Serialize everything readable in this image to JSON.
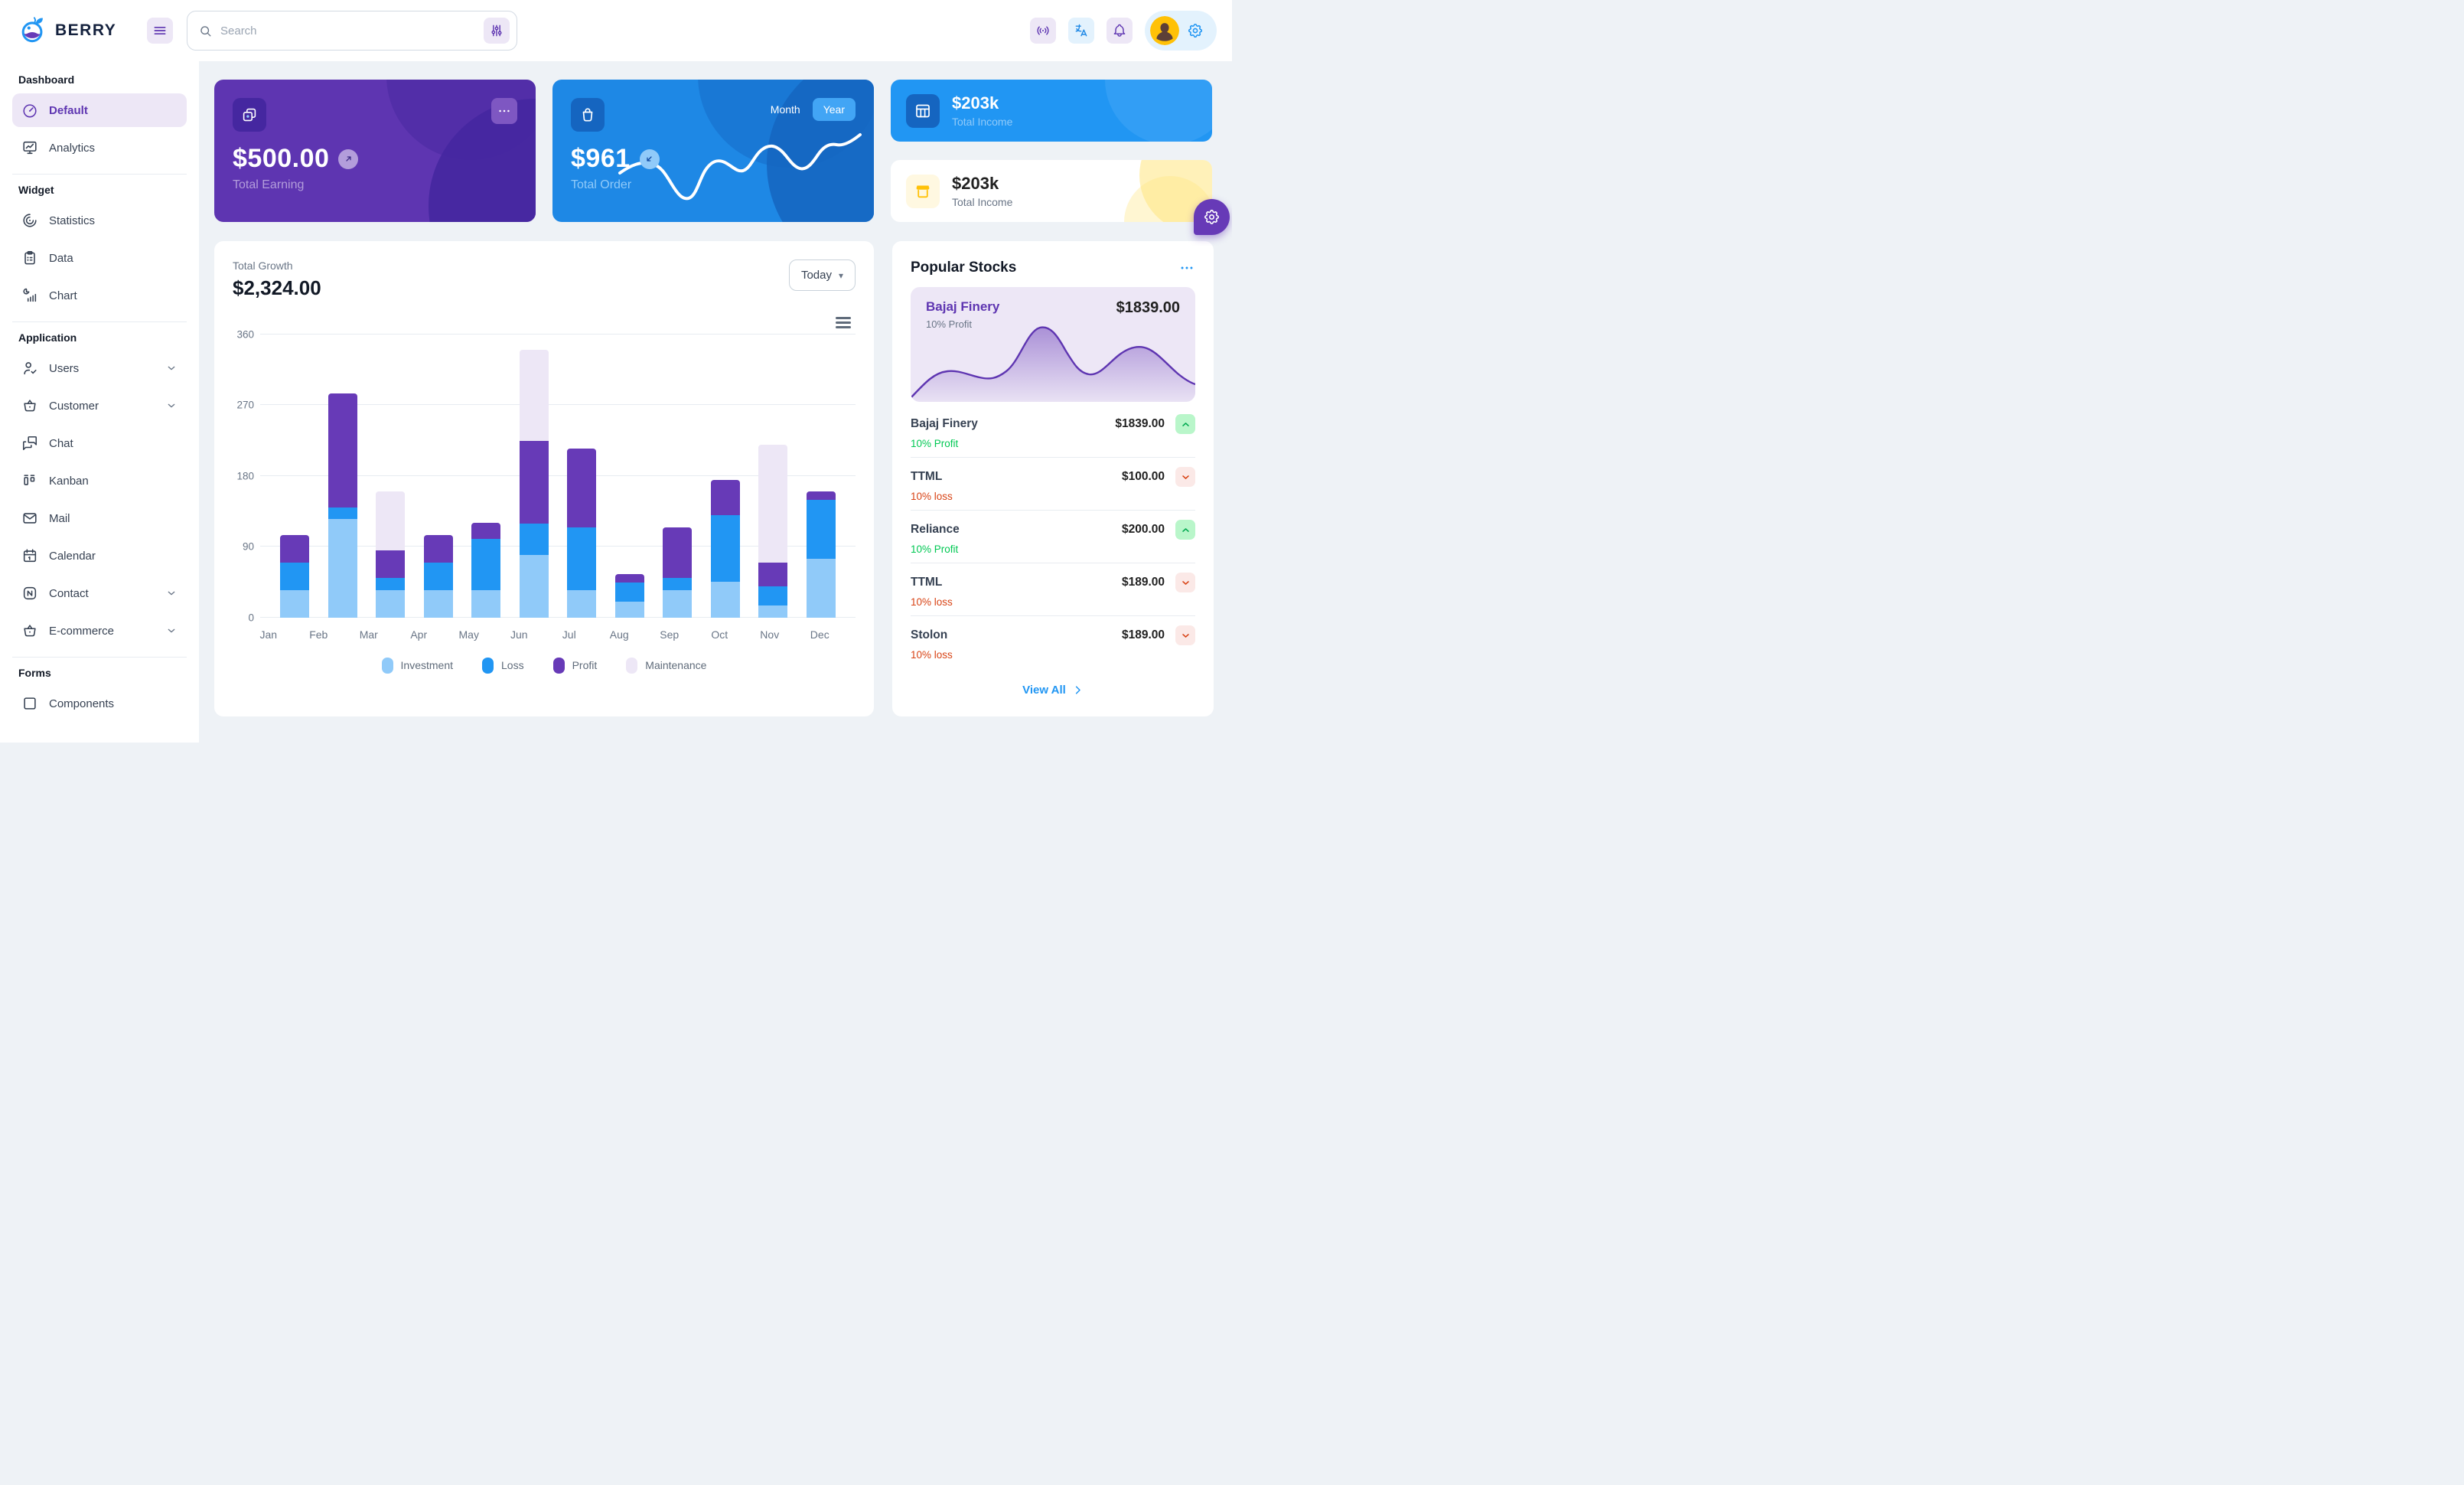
{
  "brand": {
    "name": "BERRY"
  },
  "header": {
    "search_placeholder": "Search",
    "icons": [
      "hamburger-icon",
      "search-icon",
      "filter-icon",
      "broadcast-icon",
      "translate-icon",
      "bell-icon",
      "avatar",
      "gear-icon"
    ]
  },
  "sidebar": {
    "sections": [
      {
        "label": "Dashboard",
        "items": [
          {
            "label": "Default",
            "icon": "gauge-icon",
            "selected": true,
            "chevron": false
          },
          {
            "label": "Analytics",
            "icon": "analytics-icon",
            "selected": false,
            "chevron": false
          }
        ]
      },
      {
        "label": "Widget",
        "items": [
          {
            "label": "Statistics",
            "icon": "statistics-icon",
            "selected": false,
            "chevron": false
          },
          {
            "label": "Data",
            "icon": "clipboard-icon",
            "selected": false,
            "chevron": false
          },
          {
            "label": "Chart",
            "icon": "chart-icon",
            "selected": false,
            "chevron": false
          }
        ]
      },
      {
        "label": "Application",
        "items": [
          {
            "label": "Users",
            "icon": "user-check-icon",
            "selected": false,
            "chevron": true
          },
          {
            "label": "Customer",
            "icon": "basket-icon",
            "selected": false,
            "chevron": true
          },
          {
            "label": "Chat",
            "icon": "chat-icon",
            "selected": false,
            "chevron": false
          },
          {
            "label": "Kanban",
            "icon": "kanban-icon",
            "selected": false,
            "chevron": false
          },
          {
            "label": "Mail",
            "icon": "mail-icon",
            "selected": false,
            "chevron": false
          },
          {
            "label": "Calendar",
            "icon": "calendar-icon",
            "selected": false,
            "chevron": false
          },
          {
            "label": "Contact",
            "icon": "nfc-icon",
            "selected": false,
            "chevron": true
          },
          {
            "label": "E-commerce",
            "icon": "basket-icon",
            "selected": false,
            "chevron": true
          }
        ]
      },
      {
        "label": "Forms",
        "items": [
          {
            "label": "Components",
            "icon": "square-icon",
            "selected": false,
            "chevron": false
          }
        ]
      }
    ]
  },
  "cards": {
    "earning": {
      "value": "$500.00",
      "label": "Total Earning"
    },
    "order": {
      "value": "$961",
      "label": "Total Order",
      "toggle": {
        "month": "Month",
        "year": "Year"
      },
      "active_toggle": "Year"
    },
    "income_blue": {
      "value": "$203k",
      "label": "Total Income"
    },
    "income_white": {
      "value": "$203k",
      "label": "Total Income"
    }
  },
  "growth": {
    "title": "Total Growth",
    "value": "$2,324.00",
    "range_selector": "Today"
  },
  "chart_data": {
    "type": "bar",
    "stacked": true,
    "title": "Total Growth",
    "categories": [
      "Jan",
      "Feb",
      "Mar",
      "Apr",
      "May",
      "Jun",
      "Jul",
      "Aug",
      "Sep",
      "Oct",
      "Nov",
      "Dec"
    ],
    "series": [
      {
        "name": "Investment",
        "color": "#90caf9",
        "values": [
          35,
          125,
          35,
          35,
          35,
          80,
          35,
          20,
          35,
          45,
          15,
          75
        ]
      },
      {
        "name": "Loss",
        "color": "#2196f3",
        "values": [
          35,
          15,
          15,
          35,
          65,
          40,
          80,
          25,
          15,
          85,
          25,
          75
        ]
      },
      {
        "name": "Profit",
        "color": "#673ab7",
        "values": [
          35,
          145,
          35,
          35,
          20,
          105,
          100,
          10,
          65,
          45,
          30,
          10
        ]
      },
      {
        "name": "Maintenance",
        "color": "#ede7f6",
        "values": [
          0,
          0,
          75,
          0,
          0,
          115,
          0,
          0,
          0,
          0,
          150,
          0
        ]
      }
    ],
    "ylim": [
      0,
      360
    ],
    "yticks": [
      0,
      90,
      180,
      270,
      360
    ],
    "grid": true,
    "legend_position": "bottom"
  },
  "stocks": {
    "title": "Popular Stocks",
    "featured": {
      "name": "Bajaj Finery",
      "sub": "10% Profit",
      "price": "$1839.00"
    },
    "items": [
      {
        "name": "Bajaj Finery",
        "change": "10% Profit",
        "price": "$1839.00",
        "direction": "up"
      },
      {
        "name": "TTML",
        "change": "10% loss",
        "price": "$100.00",
        "direction": "down"
      },
      {
        "name": "Reliance",
        "change": "10% Profit",
        "price": "$200.00",
        "direction": "up"
      },
      {
        "name": "TTML",
        "change": "10% loss",
        "price": "$189.00",
        "direction": "down"
      },
      {
        "name": "Stolon",
        "change": "10% loss",
        "price": "$189.00",
        "direction": "down"
      }
    ],
    "view_all": "View All"
  },
  "colors": {
    "background": "#eef2f6",
    "purple": "#5e35b1",
    "purple_dark": "#4527a0",
    "blue": "#2196f3",
    "blue_dark": "#1e88e5",
    "success": "#00c853",
    "danger": "#d84315",
    "warning": "#ffc107"
  }
}
